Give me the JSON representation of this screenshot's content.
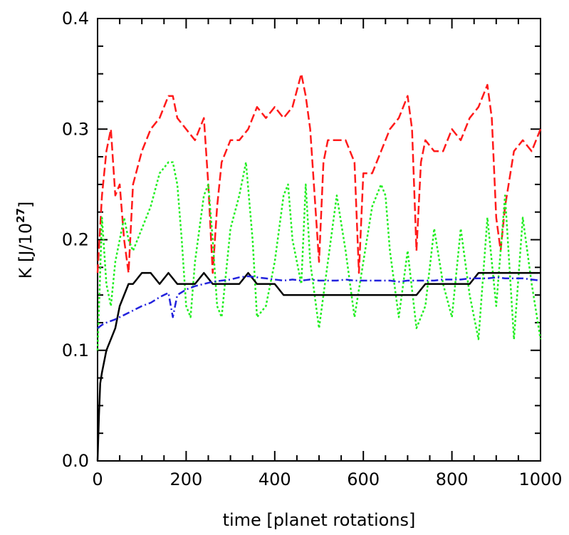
{
  "chart_data": {
    "type": "line",
    "title": "",
    "xlabel": "time [planet rotations]",
    "ylabel": {
      "prefix": "K [J/10",
      "exponent": "27",
      "suffix": "]"
    },
    "xlim": [
      0,
      1000
    ],
    "ylim": [
      0.0,
      0.4
    ],
    "xticks": [
      0,
      200,
      400,
      600,
      800,
      1000
    ],
    "xtick_labels": [
      "0",
      "200",
      "400",
      "600",
      "800",
      "1000"
    ],
    "yticks": [
      0.0,
      0.1,
      0.2,
      0.3,
      0.4
    ],
    "ytick_labels": [
      "0.0",
      "0.1",
      "0.2",
      "0.3",
      "0.4"
    ],
    "grid": false,
    "series": [
      {
        "name": "red dashed",
        "color": "#ff1a1a",
        "style": "dashed",
        "x": [
          0,
          10,
          20,
          30,
          40,
          50,
          60,
          70,
          80,
          100,
          120,
          140,
          160,
          170,
          180,
          200,
          220,
          240,
          250,
          260,
          270,
          280,
          300,
          320,
          340,
          360,
          380,
          400,
          420,
          440,
          460,
          470,
          480,
          490,
          500,
          510,
          520,
          540,
          560,
          580,
          590,
          600,
          620,
          640,
          660,
          680,
          700,
          710,
          720,
          730,
          740,
          760,
          780,
          800,
          820,
          840,
          860,
          880,
          890,
          900,
          910,
          920,
          940,
          960,
          980,
          1000
        ],
        "y": [
          0.17,
          0.24,
          0.28,
          0.3,
          0.24,
          0.25,
          0.2,
          0.17,
          0.25,
          0.28,
          0.3,
          0.31,
          0.33,
          0.33,
          0.31,
          0.3,
          0.29,
          0.31,
          0.25,
          0.17,
          0.23,
          0.27,
          0.29,
          0.29,
          0.3,
          0.32,
          0.31,
          0.32,
          0.31,
          0.32,
          0.35,
          0.33,
          0.3,
          0.24,
          0.18,
          0.27,
          0.29,
          0.29,
          0.29,
          0.27,
          0.17,
          0.26,
          0.26,
          0.28,
          0.3,
          0.31,
          0.33,
          0.3,
          0.19,
          0.27,
          0.29,
          0.28,
          0.28,
          0.3,
          0.29,
          0.31,
          0.32,
          0.34,
          0.31,
          0.22,
          0.19,
          0.23,
          0.28,
          0.29,
          0.28,
          0.3
        ]
      },
      {
        "name": "green dotted",
        "color": "#22ee22",
        "style": "dotted",
        "x": [
          0,
          10,
          20,
          30,
          40,
          50,
          60,
          70,
          80,
          100,
          120,
          140,
          160,
          170,
          180,
          190,
          200,
          210,
          220,
          240,
          250,
          260,
          270,
          280,
          300,
          320,
          335,
          350,
          360,
          380,
          400,
          420,
          430,
          440,
          460,
          470,
          480,
          500,
          520,
          540,
          560,
          580,
          600,
          620,
          640,
          650,
          660,
          680,
          700,
          720,
          740,
          760,
          780,
          800,
          820,
          840,
          860,
          880,
          900,
          920,
          940,
          960,
          980,
          1000
        ],
        "y": [
          0.1,
          0.22,
          0.16,
          0.14,
          0.18,
          0.2,
          0.22,
          0.2,
          0.19,
          0.21,
          0.23,
          0.26,
          0.27,
          0.27,
          0.25,
          0.2,
          0.14,
          0.13,
          0.18,
          0.24,
          0.25,
          0.2,
          0.14,
          0.13,
          0.21,
          0.24,
          0.27,
          0.2,
          0.13,
          0.14,
          0.18,
          0.24,
          0.25,
          0.2,
          0.16,
          0.25,
          0.18,
          0.12,
          0.18,
          0.24,
          0.19,
          0.13,
          0.18,
          0.23,
          0.25,
          0.24,
          0.19,
          0.13,
          0.19,
          0.12,
          0.14,
          0.21,
          0.16,
          0.13,
          0.21,
          0.15,
          0.11,
          0.22,
          0.14,
          0.24,
          0.11,
          0.22,
          0.16,
          0.11
        ]
      },
      {
        "name": "black solid",
        "color": "#000000",
        "style": "solid",
        "x": [
          0,
          3,
          6,
          10,
          15,
          20,
          30,
          40,
          50,
          60,
          70,
          80,
          100,
          120,
          140,
          160,
          180,
          200,
          220,
          240,
          260,
          280,
          300,
          320,
          340,
          360,
          380,
          400,
          420,
          440,
          460,
          480,
          500,
          520,
          540,
          560,
          580,
          600,
          620,
          640,
          660,
          680,
          700,
          720,
          740,
          760,
          780,
          800,
          820,
          840,
          860,
          880,
          900,
          920,
          940,
          960,
          980,
          1000
        ],
        "y": [
          0.0,
          0.04,
          0.07,
          0.08,
          0.09,
          0.1,
          0.11,
          0.12,
          0.14,
          0.15,
          0.16,
          0.16,
          0.17,
          0.17,
          0.16,
          0.17,
          0.16,
          0.16,
          0.16,
          0.17,
          0.16,
          0.16,
          0.16,
          0.16,
          0.17,
          0.16,
          0.16,
          0.16,
          0.15,
          0.15,
          0.15,
          0.15,
          0.15,
          0.15,
          0.15,
          0.15,
          0.15,
          0.15,
          0.15,
          0.15,
          0.15,
          0.15,
          0.15,
          0.15,
          0.16,
          0.16,
          0.16,
          0.16,
          0.16,
          0.16,
          0.17,
          0.17,
          0.17,
          0.17,
          0.17,
          0.17,
          0.17,
          0.17
        ]
      },
      {
        "name": "blue dash-dot",
        "color": "#2222dd",
        "style": "dashdot",
        "x": [
          0,
          10,
          20,
          40,
          60,
          80,
          100,
          120,
          140,
          160,
          170,
          180,
          200,
          220,
          240,
          260,
          280,
          300,
          320,
          340,
          360,
          380,
          400,
          420,
          440,
          460,
          480,
          500,
          520,
          540,
          560,
          580,
          600,
          620,
          640,
          660,
          680,
          700,
          720,
          740,
          760,
          780,
          800,
          820,
          840,
          860,
          880,
          900,
          920,
          940,
          960,
          980,
          1000
        ],
        "y": [
          0.12,
          0.123,
          0.125,
          0.128,
          0.132,
          0.136,
          0.14,
          0.143,
          0.148,
          0.152,
          0.13,
          0.15,
          0.155,
          0.158,
          0.16,
          0.162,
          0.163,
          0.164,
          0.166,
          0.167,
          0.166,
          0.165,
          0.164,
          0.163,
          0.164,
          0.163,
          0.164,
          0.163,
          0.163,
          0.163,
          0.164,
          0.163,
          0.163,
          0.163,
          0.163,
          0.163,
          0.162,
          0.163,
          0.163,
          0.163,
          0.163,
          0.164,
          0.164,
          0.164,
          0.165,
          0.165,
          0.165,
          0.166,
          0.165,
          0.165,
          0.165,
          0.164,
          0.163
        ]
      }
    ]
  }
}
